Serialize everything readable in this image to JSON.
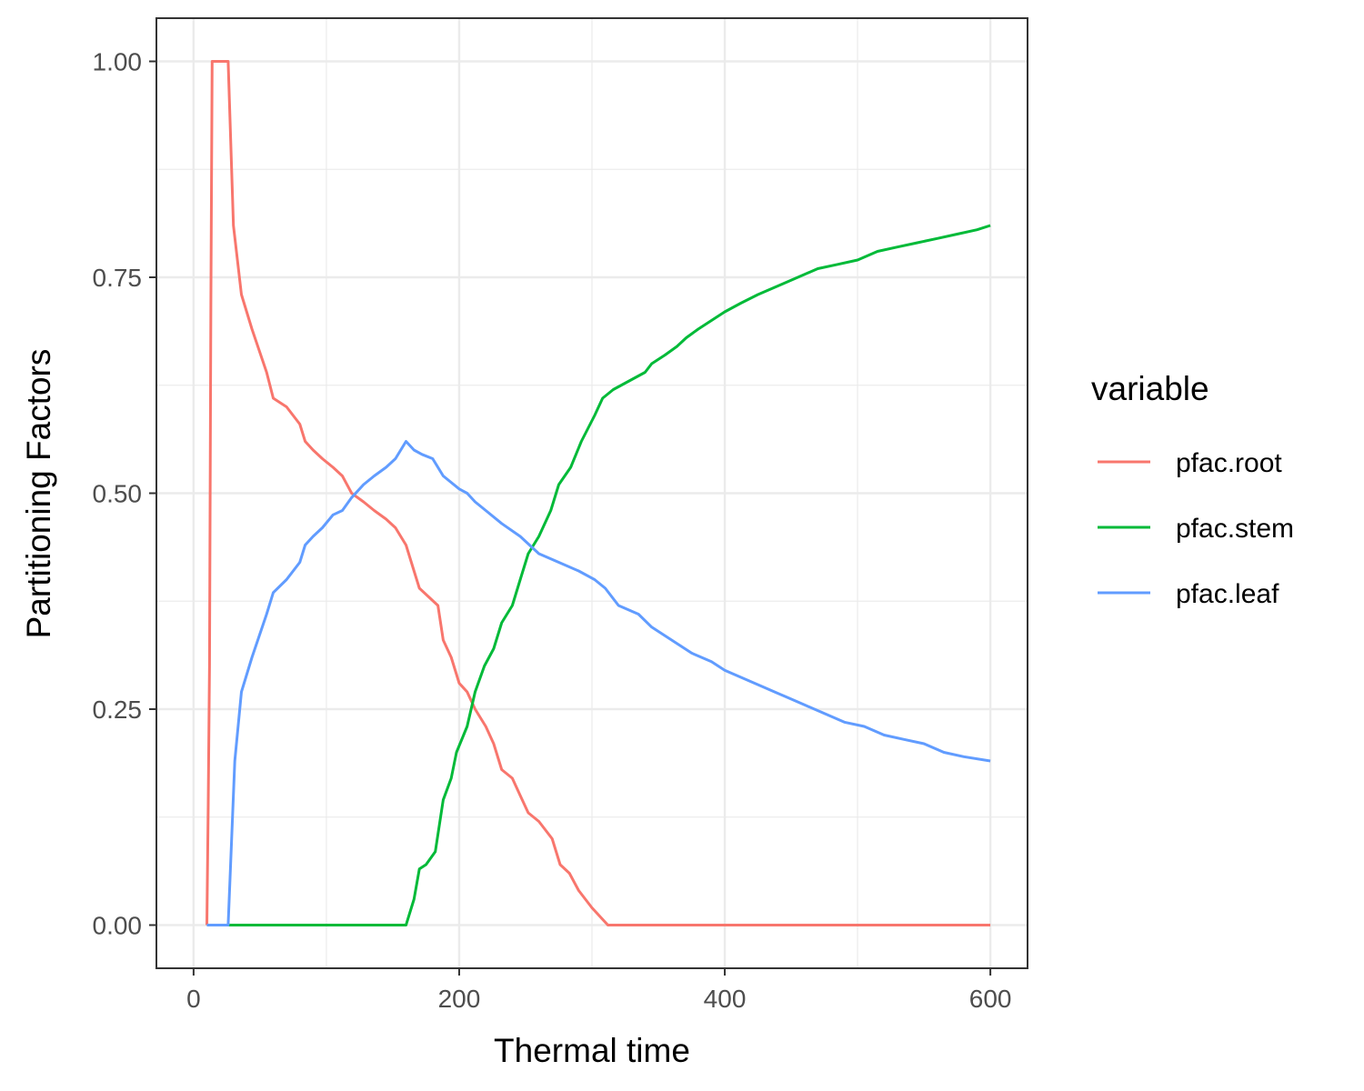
{
  "chart_data": {
    "type": "line",
    "title": "",
    "xlabel": "Thermal time",
    "ylabel": "Partitioning Factors",
    "xlim": [
      -28,
      628
    ],
    "ylim": [
      -0.05,
      1.05
    ],
    "x_ticks": [
      0,
      200,
      400,
      600
    ],
    "y_ticks": [
      0.0,
      0.25,
      0.5,
      0.75,
      1.0
    ],
    "x_tick_labels": [
      "0",
      "200",
      "400",
      "600"
    ],
    "y_tick_labels": [
      "0.00",
      "0.25",
      "0.50",
      "0.75",
      "1.00"
    ],
    "grid": true,
    "legend": {
      "title": "variable",
      "position": "right"
    },
    "series": [
      {
        "name": "pfac.root",
        "color": "#F8766D",
        "points": [
          [
            10,
            0
          ],
          [
            11,
            0.14
          ],
          [
            12,
            0.3
          ],
          [
            13,
            0.72
          ],
          [
            14,
            1.0
          ],
          [
            26,
            1.0
          ],
          [
            30,
            0.81
          ],
          [
            36,
            0.73
          ],
          [
            44,
            0.69
          ],
          [
            55,
            0.64
          ],
          [
            60,
            0.61
          ],
          [
            70,
            0.6
          ],
          [
            80,
            0.58
          ],
          [
            84,
            0.56
          ],
          [
            90,
            0.55
          ],
          [
            97,
            0.54
          ],
          [
            105,
            0.53
          ],
          [
            112,
            0.52
          ],
          [
            119,
            0.5
          ],
          [
            128,
            0.49
          ],
          [
            136,
            0.48
          ],
          [
            145,
            0.47
          ],
          [
            152,
            0.46
          ],
          [
            160,
            0.44
          ],
          [
            166,
            0.41
          ],
          [
            170,
            0.39
          ],
          [
            177,
            0.38
          ],
          [
            184,
            0.37
          ],
          [
            188,
            0.33
          ],
          [
            194,
            0.31
          ],
          [
            200,
            0.28
          ],
          [
            206,
            0.27
          ],
          [
            212,
            0.25
          ],
          [
            220,
            0.23
          ],
          [
            226,
            0.21
          ],
          [
            232,
            0.18
          ],
          [
            240,
            0.17
          ],
          [
            246,
            0.15
          ],
          [
            252,
            0.13
          ],
          [
            260,
            0.12
          ],
          [
            270,
            0.1
          ],
          [
            276,
            0.07
          ],
          [
            283,
            0.06
          ],
          [
            290,
            0.04
          ],
          [
            300,
            0.02
          ],
          [
            312,
            0.0
          ],
          [
            600,
            0.0
          ]
        ]
      },
      {
        "name": "pfac.stem",
        "color": "#00BA38",
        "points": [
          [
            10,
            0
          ],
          [
            160,
            0
          ],
          [
            166,
            0.03
          ],
          [
            170,
            0.065
          ],
          [
            175,
            0.07
          ],
          [
            182,
            0.085
          ],
          [
            188,
            0.145
          ],
          [
            194,
            0.17
          ],
          [
            198,
            0.2
          ],
          [
            206,
            0.23
          ],
          [
            212,
            0.27
          ],
          [
            219,
            0.3
          ],
          [
            226,
            0.32
          ],
          [
            232,
            0.35
          ],
          [
            240,
            0.37
          ],
          [
            246,
            0.4
          ],
          [
            252,
            0.43
          ],
          [
            260,
            0.45
          ],
          [
            269,
            0.48
          ],
          [
            275,
            0.51
          ],
          [
            284,
            0.53
          ],
          [
            292,
            0.56
          ],
          [
            302,
            0.59
          ],
          [
            308,
            0.61
          ],
          [
            316,
            0.62
          ],
          [
            328,
            0.63
          ],
          [
            340,
            0.64
          ],
          [
            345,
            0.65
          ],
          [
            355,
            0.66
          ],
          [
            364,
            0.67
          ],
          [
            371,
            0.68
          ],
          [
            380,
            0.69
          ],
          [
            390,
            0.7
          ],
          [
            400,
            0.71
          ],
          [
            412,
            0.72
          ],
          [
            425,
            0.73
          ],
          [
            440,
            0.74
          ],
          [
            455,
            0.75
          ],
          [
            470,
            0.76
          ],
          [
            485,
            0.765
          ],
          [
            500,
            0.77
          ],
          [
            515,
            0.78
          ],
          [
            530,
            0.785
          ],
          [
            545,
            0.79
          ],
          [
            560,
            0.795
          ],
          [
            575,
            0.8
          ],
          [
            590,
            0.805
          ],
          [
            600,
            0.81
          ]
        ]
      },
      {
        "name": "pfac.leaf",
        "color": "#619CFF",
        "points": [
          [
            10,
            0
          ],
          [
            26,
            0
          ],
          [
            31,
            0.19
          ],
          [
            36,
            0.27
          ],
          [
            44,
            0.31
          ],
          [
            55,
            0.36
          ],
          [
            60,
            0.385
          ],
          [
            70,
            0.4
          ],
          [
            80,
            0.42
          ],
          [
            84,
            0.44
          ],
          [
            90,
            0.45
          ],
          [
            97,
            0.46
          ],
          [
            105,
            0.475
          ],
          [
            112,
            0.48
          ],
          [
            119,
            0.495
          ],
          [
            128,
            0.51
          ],
          [
            136,
            0.52
          ],
          [
            145,
            0.53
          ],
          [
            152,
            0.54
          ],
          [
            160,
            0.56
          ],
          [
            166,
            0.55
          ],
          [
            172,
            0.545
          ],
          [
            180,
            0.54
          ],
          [
            188,
            0.52
          ],
          [
            200,
            0.505
          ],
          [
            206,
            0.5
          ],
          [
            212,
            0.49
          ],
          [
            220,
            0.48
          ],
          [
            232,
            0.465
          ],
          [
            246,
            0.45
          ],
          [
            260,
            0.43
          ],
          [
            275,
            0.42
          ],
          [
            290,
            0.41
          ],
          [
            302,
            0.4
          ],
          [
            310,
            0.39
          ],
          [
            320,
            0.37
          ],
          [
            335,
            0.36
          ],
          [
            345,
            0.345
          ],
          [
            355,
            0.335
          ],
          [
            365,
            0.325
          ],
          [
            375,
            0.315
          ],
          [
            390,
            0.305
          ],
          [
            400,
            0.295
          ],
          [
            415,
            0.285
          ],
          [
            430,
            0.275
          ],
          [
            445,
            0.265
          ],
          [
            460,
            0.255
          ],
          [
            475,
            0.245
          ],
          [
            490,
            0.235
          ],
          [
            505,
            0.23
          ],
          [
            520,
            0.22
          ],
          [
            535,
            0.215
          ],
          [
            550,
            0.21
          ],
          [
            565,
            0.2
          ],
          [
            580,
            0.195
          ],
          [
            600,
            0.19
          ]
        ]
      }
    ]
  }
}
